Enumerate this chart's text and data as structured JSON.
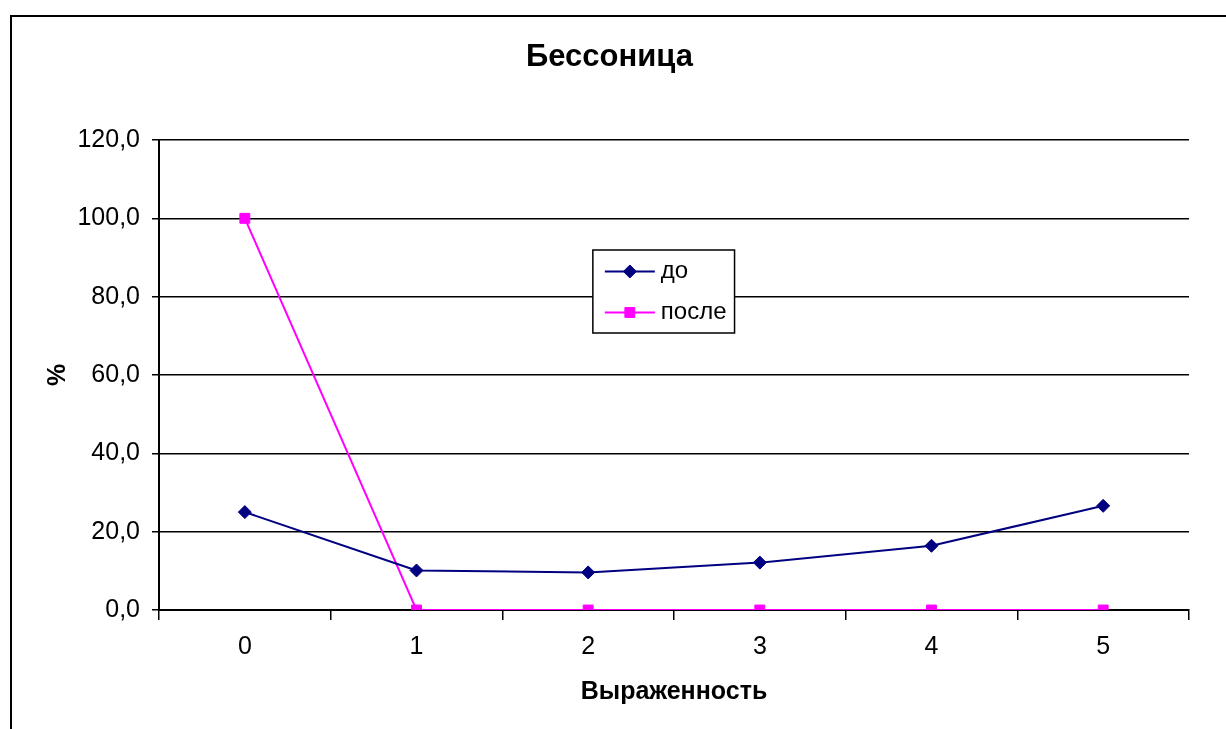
{
  "chart_data": {
    "type": "line",
    "title": "Бессоница",
    "xlabel": "Выраженность",
    "ylabel": "%",
    "categories": [
      "0",
      "1",
      "2",
      "3",
      "4",
      "5"
    ],
    "series": [
      {
        "name": "до",
        "color": "#000080",
        "marker": "diamond",
        "values": [
          25.0,
          10.1,
          9.6,
          12.1,
          16.4,
          26.6
        ]
      },
      {
        "name": "после",
        "color": "#ff00ff",
        "marker": "square",
        "values": [
          100.0,
          0,
          0,
          0,
          0,
          0
        ]
      }
    ],
    "ylim": [
      0,
      120
    ],
    "yticks": [
      {
        "value": 0,
        "label": "0,0"
      },
      {
        "value": 20,
        "label": "20,0"
      },
      {
        "value": 40,
        "label": "40,0"
      },
      {
        "value": 60,
        "label": "60,0"
      },
      {
        "value": 80,
        "label": "80,0"
      },
      {
        "value": 100,
        "label": "100,0"
      },
      {
        "value": 120,
        "label": "120,0"
      }
    ],
    "grid": "y",
    "legend": "top",
    "line_style": "solid"
  }
}
